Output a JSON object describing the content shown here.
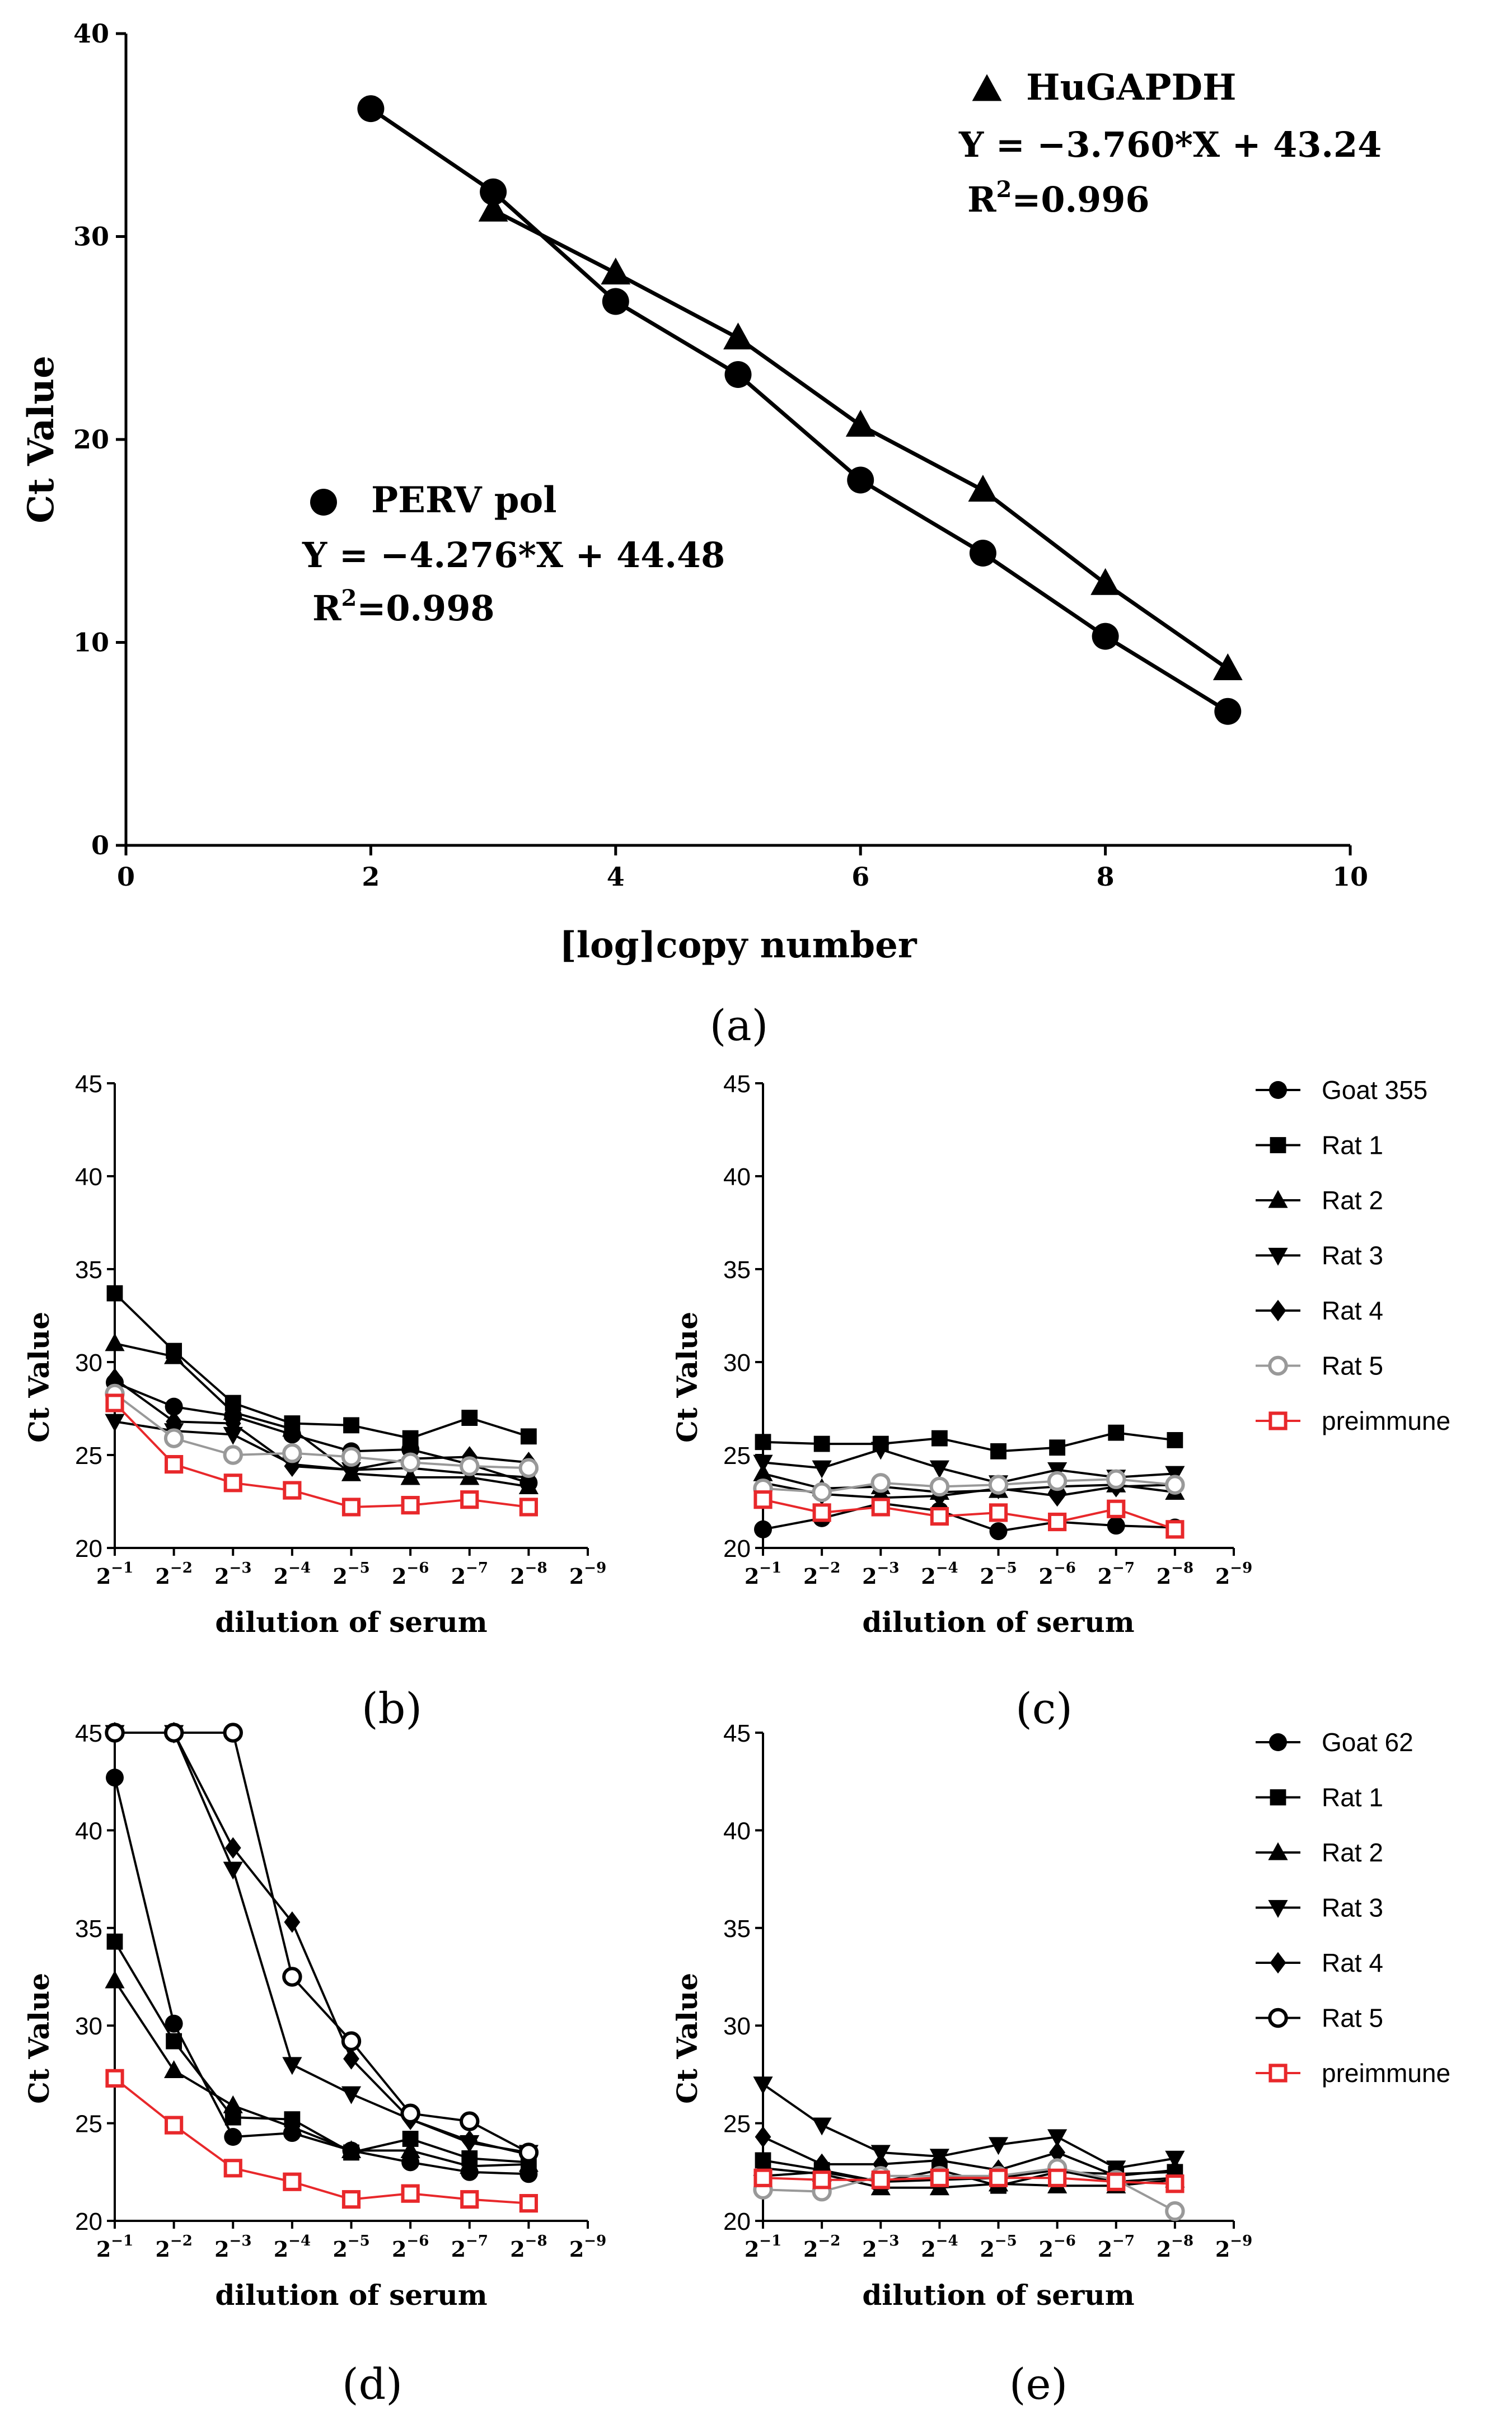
{
  "chart_data": [
    {
      "panel": "(a)",
      "type": "line",
      "xlabel": "[log]copy number",
      "ylabel": "Ct Value",
      "xlim": [
        0,
        10
      ],
      "ylim": [
        0,
        40
      ],
      "xticks": [
        "0",
        "2",
        "4",
        "6",
        "8",
        "10"
      ],
      "yticks": [
        "0",
        "10",
        "20",
        "30",
        "40"
      ],
      "series": [
        {
          "name": "PERV pol",
          "marker": "circle",
          "color": "#000000",
          "x": [
            2,
            3,
            4,
            5,
            6,
            7,
            8,
            9
          ],
          "y": [
            36.3,
            32.2,
            26.8,
            23.2,
            18.0,
            14.4,
            10.3,
            6.6
          ],
          "equation": "Y = −4.276*X + 44.48",
          "r2_prefix": "R",
          "r2_exp": "2",
          "r2_value": "=0.998"
        },
        {
          "name": "HuGAPDH",
          "marker": "triangle",
          "color": "#000000",
          "x": [
            3,
            4,
            5,
            6,
            7,
            8,
            9
          ],
          "y": [
            31.3,
            28.2,
            25.0,
            20.7,
            17.5,
            12.9,
            8.7
          ],
          "equation": "Y = −3.760*X + 43.24",
          "r2_prefix": "R",
          "r2_exp": "2",
          "r2_value": "=0.996"
        }
      ]
    },
    {
      "panel": "(b)",
      "type": "line",
      "xlabel": "dilution of serum",
      "ylabel": "Ct Value",
      "xlim": [
        1,
        9
      ],
      "ylim": [
        20,
        45
      ],
      "yticks": [
        "20",
        "25",
        "30",
        "35",
        "40",
        "45"
      ],
      "xtick_base": "2",
      "xtick_exps": [
        "−1",
        "−2",
        "−3",
        "−4",
        "−5",
        "−6",
        "−7",
        "−8",
        "−9"
      ],
      "x": [
        1,
        2,
        3,
        4,
        5,
        6,
        7,
        8
      ],
      "series": [
        {
          "name": "Goat 355",
          "marker": "circle",
          "color": "#000000",
          "values": [
            28.9,
            27.6,
            27.1,
            26.1,
            25.2,
            25.3,
            24.5,
            23.5
          ]
        },
        {
          "name": "Rat 1",
          "marker": "square",
          "color": "#000000",
          "values": [
            33.7,
            30.6,
            27.8,
            26.7,
            26.6,
            25.9,
            27.0,
            26.0
          ]
        },
        {
          "name": "Rat 2",
          "marker": "triangle",
          "color": "#000000",
          "values": [
            31.0,
            30.3,
            27.3,
            26.4,
            24.0,
            23.8,
            23.8,
            23.3
          ]
        },
        {
          "name": "Rat 3",
          "marker": "triangle-down",
          "color": "#000000",
          "values": [
            26.8,
            26.3,
            26.1,
            24.5,
            24.2,
            24.3,
            24.0,
            23.8
          ]
        },
        {
          "name": "Rat 4",
          "marker": "diamond",
          "color": "#000000",
          "values": [
            29.1,
            26.8,
            26.7,
            24.4,
            24.2,
            24.8,
            24.9,
            24.6
          ]
        },
        {
          "name": "Rat 5",
          "marker": "circle-open",
          "color": "#999999",
          "values": [
            28.3,
            25.9,
            25.0,
            25.1,
            24.9,
            24.6,
            24.4,
            24.3
          ]
        },
        {
          "name": "preimmune",
          "marker": "square-open",
          "color": "#e8282b",
          "values": [
            27.8,
            24.5,
            23.5,
            23.1,
            22.2,
            22.3,
            22.6,
            22.2
          ]
        }
      ]
    },
    {
      "panel": "(c)",
      "type": "line",
      "xlabel": "dilution of serum",
      "ylabel": "Ct Value",
      "xlim": [
        1,
        9
      ],
      "ylim": [
        20,
        45
      ],
      "yticks": [
        "20",
        "25",
        "30",
        "35",
        "40",
        "45"
      ],
      "xtick_base": "2",
      "xtick_exps": [
        "−1",
        "−2",
        "−3",
        "−4",
        "−5",
        "−6",
        "−7",
        "−8",
        "−9"
      ],
      "x": [
        1,
        2,
        3,
        4,
        5,
        6,
        7,
        8
      ],
      "series": [
        {
          "name": "Goat 355",
          "marker": "circle",
          "color": "#000000",
          "values": [
            21.0,
            21.6,
            22.4,
            22.0,
            20.9,
            21.4,
            21.2,
            21.1
          ]
        },
        {
          "name": "Rat 1",
          "marker": "square",
          "color": "#000000",
          "values": [
            25.7,
            25.6,
            25.6,
            25.9,
            25.2,
            25.4,
            26.2,
            25.8
          ]
        },
        {
          "name": "Rat 2",
          "marker": "triangle",
          "color": "#000000",
          "values": [
            24.0,
            23.2,
            23.3,
            23.0,
            23.1,
            23.3,
            23.4,
            23.0
          ]
        },
        {
          "name": "Rat 3",
          "marker": "triangle-down",
          "color": "#000000",
          "values": [
            24.6,
            24.3,
            25.3,
            24.3,
            23.5,
            24.2,
            23.8,
            24.0
          ]
        },
        {
          "name": "Rat 4",
          "marker": "diamond",
          "color": "#000000",
          "values": [
            23.5,
            22.9,
            22.7,
            22.8,
            23.2,
            22.8,
            23.3,
            23.4
          ]
        },
        {
          "name": "Rat 5",
          "marker": "circle-open",
          "color": "#999999",
          "values": [
            23.2,
            23.0,
            23.5,
            23.3,
            23.4,
            23.6,
            23.7,
            23.4
          ]
        },
        {
          "name": "preimmune",
          "marker": "square-open",
          "color": "#e8282b",
          "values": [
            22.6,
            21.9,
            22.2,
            21.7,
            21.9,
            21.4,
            22.1,
            21.0
          ]
        }
      ]
    },
    {
      "panel": "(d)",
      "type": "line",
      "xlabel": "dilution of serum",
      "ylabel": "Ct Value",
      "xlim": [
        1,
        9
      ],
      "ylim": [
        20,
        45
      ],
      "yticks": [
        "20",
        "25",
        "30",
        "35",
        "40",
        "45"
      ],
      "xtick_base": "2",
      "xtick_exps": [
        "−1",
        "−2",
        "−3",
        "−4",
        "−5",
        "−6",
        "−7",
        "−8",
        "−9"
      ],
      "x": [
        1,
        2,
        3,
        4,
        5,
        6,
        7,
        8
      ],
      "series": [
        {
          "name": "Goat 62",
          "marker": "circle",
          "color": "#000000",
          "values": [
            42.7,
            30.1,
            24.3,
            24.5,
            23.6,
            23.0,
            22.5,
            22.4
          ]
        },
        {
          "name": "Rat 1",
          "marker": "square",
          "color": "#000000",
          "values": [
            34.3,
            29.2,
            25.3,
            25.2,
            23.5,
            24.2,
            23.2,
            23.0
          ]
        },
        {
          "name": "Rat 2",
          "marker": "triangle",
          "color": "#000000",
          "values": [
            32.3,
            27.7,
            25.9,
            24.8,
            23.6,
            23.6,
            22.8,
            22.9
          ]
        },
        {
          "name": "Rat 3",
          "marker": "triangle-down",
          "color": "#000000",
          "values": [
            45.0,
            45.0,
            38.0,
            28.0,
            26.5,
            25.2,
            24.0,
            23.5
          ]
        },
        {
          "name": "Rat 4",
          "marker": "diamond",
          "color": "#000000",
          "values": [
            45.0,
            45.0,
            39.1,
            35.3,
            28.3,
            25.2,
            24.1,
            23.4
          ]
        },
        {
          "name": "Rat 5",
          "marker": "circle-open",
          "color": "#000000",
          "values": [
            45.0,
            45.0,
            45.0,
            32.5,
            29.2,
            25.5,
            25.1,
            23.5
          ]
        },
        {
          "name": "preimmune",
          "marker": "square-open",
          "color": "#e8282b",
          "values": [
            27.3,
            24.9,
            22.7,
            22.0,
            21.1,
            21.4,
            21.1,
            20.9
          ]
        }
      ]
    },
    {
      "panel": "(e)",
      "type": "line",
      "xlabel": "dilution of serum",
      "ylabel": "Ct Value",
      "xlim": [
        1,
        9
      ],
      "ylim": [
        20,
        45
      ],
      "yticks": [
        "20",
        "25",
        "30",
        "35",
        "40",
        "45"
      ],
      "xtick_base": "2",
      "xtick_exps": [
        "−1",
        "−2",
        "−3",
        "−4",
        "−5",
        "−6",
        "−7",
        "−8",
        "−9"
      ],
      "x": [
        1,
        2,
        3,
        4,
        5,
        6,
        7,
        8
      ],
      "series": [
        {
          "name": "Goat 62",
          "marker": "circle",
          "color": "#000000",
          "values": [
            22.3,
            22.5,
            22.0,
            22.1,
            22.2,
            22.6,
            22.0,
            22.2
          ]
        },
        {
          "name": "Rat 1",
          "marker": "square",
          "color": "#000000",
          "values": [
            23.1,
            22.6,
            22.0,
            22.6,
            21.8,
            22.5,
            22.4,
            22.5
          ]
        },
        {
          "name": "Rat 2",
          "marker": "triangle",
          "color": "#000000",
          "values": [
            22.7,
            22.4,
            21.7,
            21.7,
            21.9,
            21.8,
            21.8,
            22.1
          ]
        },
        {
          "name": "Rat 3",
          "marker": "triangle-down",
          "color": "#000000",
          "values": [
            27.0,
            24.9,
            23.5,
            23.3,
            23.9,
            24.3,
            22.7,
            23.2
          ]
        },
        {
          "name": "Rat 4",
          "marker": "diamond",
          "color": "#000000",
          "values": [
            24.3,
            22.9,
            22.9,
            23.1,
            22.6,
            23.5,
            22.3,
            22.6
          ]
        },
        {
          "name": "Rat 5",
          "marker": "circle-open",
          "color": "#999999",
          "values": [
            21.6,
            21.5,
            22.3,
            22.3,
            22.3,
            22.7,
            22.1,
            20.5
          ]
        },
        {
          "name": "preimmune",
          "marker": "square-open",
          "color": "#e8282b",
          "values": [
            22.2,
            22.1,
            22.1,
            22.2,
            22.2,
            22.2,
            22.0,
            21.9
          ]
        }
      ]
    }
  ],
  "panel_labels": [
    "(a)",
    "(b)",
    "(c)",
    "(d)",
    "(e)"
  ],
  "legends": {
    "top": [
      "Goat 355",
      "Rat 1",
      "Rat 2",
      "Rat 3",
      "Rat 4",
      "Rat 5",
      "preimmune"
    ],
    "bottom": [
      "Goat 62",
      "Rat 1",
      "Rat 2",
      "Rat 3",
      "Rat 4",
      "Rat 5",
      "preimmune"
    ]
  }
}
